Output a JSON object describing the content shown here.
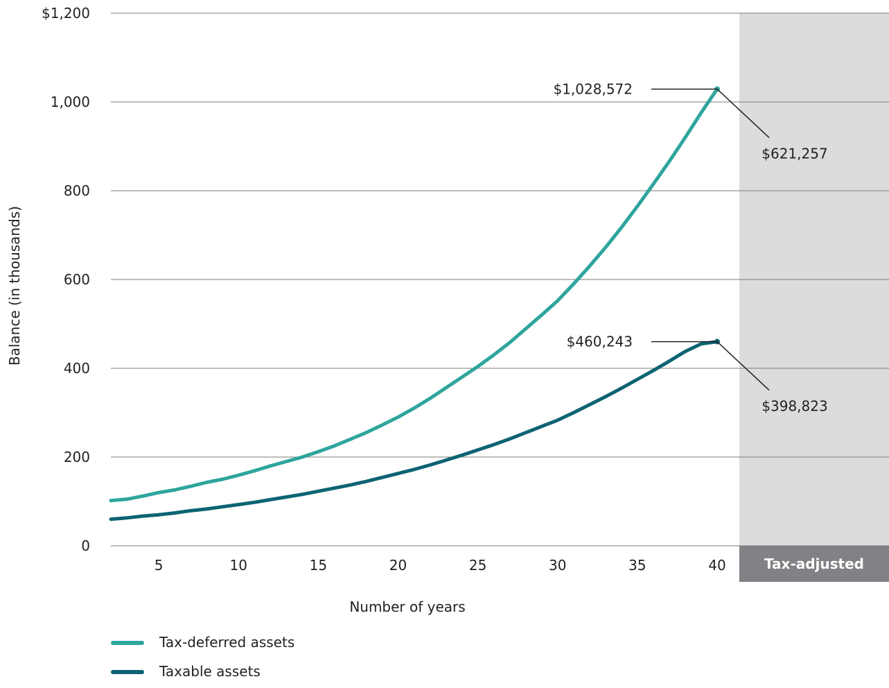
{
  "chart_data": {
    "type": "line",
    "xlabel": "Number of years",
    "ylabel": "Balance (in thousands)",
    "xlim": [
      2,
      40
    ],
    "ylim": [
      0,
      1200
    ],
    "x_ticks": [
      "5",
      "10",
      "15",
      "20",
      "25",
      "30",
      "35",
      "40"
    ],
    "x_tick_values": [
      5,
      10,
      15,
      20,
      25,
      30,
      35,
      40
    ],
    "y_ticks": [
      "0",
      "200",
      "400",
      "600",
      "800",
      "1,000",
      "$1,200"
    ],
    "y_tick_values": [
      0,
      200,
      400,
      600,
      800,
      1000,
      1200
    ],
    "grid": "horizontal",
    "x": [
      2,
      3,
      4,
      5,
      6,
      7,
      8,
      9,
      10,
      11,
      12,
      13,
      14,
      15,
      16,
      17,
      18,
      19,
      20,
      21,
      22,
      23,
      24,
      25,
      26,
      27,
      28,
      29,
      30,
      31,
      32,
      33,
      34,
      35,
      36,
      37,
      38,
      39,
      40
    ],
    "series": [
      {
        "name": "Tax-deferred assets",
        "color": "#2ea59d",
        "values": [
          102,
          105,
          112,
          120,
          126,
          134,
          143,
          150,
          159,
          169,
          180,
          190,
          200,
          212,
          225,
          240,
          255,
          272,
          290,
          310,
          332,
          356,
          380,
          404,
          430,
          458,
          489,
          520,
          552,
          590,
          630,
          672,
          717,
          765,
          815,
          866,
          920,
          976,
          1029
        ]
      },
      {
        "name": "Taxable assets",
        "color": "#0d6373",
        "values": [
          60,
          63,
          67,
          70,
          74,
          79,
          83,
          88,
          93,
          98,
          104,
          110,
          116,
          123,
          130,
          137,
          145,
          154,
          163,
          172,
          182,
          193,
          204,
          216,
          228,
          241,
          255,
          269,
          283,
          300,
          318,
          336,
          355,
          375,
          395,
          416,
          438,
          455,
          460
        ]
      }
    ],
    "annotations": [
      {
        "text": "$1,028,572",
        "series": "Tax-deferred assets",
        "x": 40,
        "y": 1029
      },
      {
        "text": "$621,257",
        "series": "Tax-deferred assets",
        "x": 40,
        "y": 621
      },
      {
        "text": "$460,243",
        "series": "Taxable assets",
        "x": 40,
        "y": 460
      },
      {
        "text": "$398,823",
        "series": "Taxable assets",
        "x": 40,
        "y": 399
      }
    ],
    "shaded_region_label": "Tax-adjusted",
    "legend_position": "bottom-left"
  },
  "colors": {
    "tax_deferred": "#2ea59d",
    "taxable": "#0d6373",
    "shaded_panel": "#dcdcdd",
    "shaded_label_bg": "#808285",
    "grid": "#7b7b7b"
  }
}
